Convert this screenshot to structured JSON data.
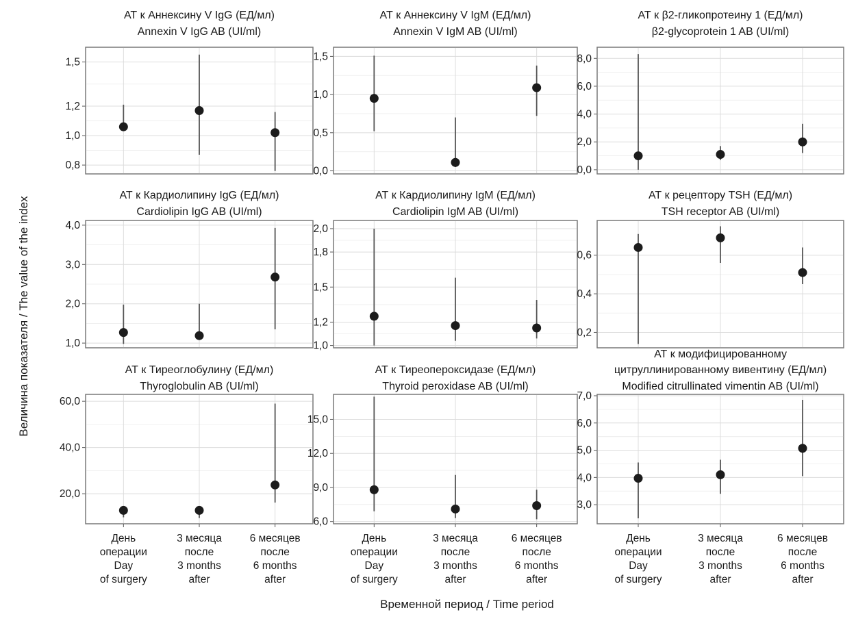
{
  "figure": {
    "y_axis_title": "Величина показателя / The value of the index",
    "x_axis_title": "Временной период / Time period",
    "categories": [
      [
        "День",
        "операции",
        "Day",
        "of surgery"
      ],
      [
        "3 месяца",
        "после",
        "3 months",
        "after"
      ],
      [
        "6 месяцев",
        "после",
        "6 months",
        "after"
      ]
    ]
  },
  "chart_data": [
    {
      "type": "scatter",
      "title": [
        "АТ к Аннексину V IgG (ЕД/мл)",
        "Annexin V IgG AB (UI/ml)"
      ],
      "categories": [
        "День операции / Day of surgery",
        "3 месяца после / 3 months after",
        "6 месяцев после / 6 months after"
      ],
      "values": [
        1.06,
        1.17,
        1.02
      ],
      "error_low": [
        null,
        0.87,
        0.76
      ],
      "error_high": [
        1.21,
        1.55,
        1.16
      ],
      "ylim": [
        0.74,
        1.6
      ],
      "yticks": [
        0.8,
        1.0,
        1.2,
        1.5
      ],
      "ytick_labels": [
        "0,8",
        "1,0",
        "1,2",
        "1,5"
      ],
      "grid": true
    },
    {
      "type": "scatter",
      "title": [
        "АТ к Аннексину V IgM (ЕД/мл)",
        "Annexin V IgM AB (UI/ml)"
      ],
      "categories": [
        "День операции / Day of surgery",
        "3 месяца после / 3 months after",
        "6 месяцев после / 6 months after"
      ],
      "values": [
        0.95,
        0.11,
        1.09
      ],
      "error_low": [
        0.52,
        0.05,
        0.72
      ],
      "error_high": [
        1.51,
        0.7,
        1.38
      ],
      "ylim": [
        -0.04,
        1.62
      ],
      "yticks": [
        0.0,
        0.5,
        1.0,
        1.5
      ],
      "ytick_labels": [
        "0,0",
        "0,5",
        "1,0",
        "1,5"
      ],
      "grid": true
    },
    {
      "type": "scatter",
      "title": [
        "АТ к β2-гликопротеину 1 (ЕД/мл)",
        "β2-glycoprotein 1 AB (UI/ml)"
      ],
      "categories": [
        "День операции / Day of surgery",
        "3 месяца после / 3 months after",
        "6 месяцев после / 6 months after"
      ],
      "values": [
        1.0,
        1.1,
        2.0
      ],
      "error_low": [
        0.0,
        0.7,
        1.2
      ],
      "error_high": [
        8.3,
        1.7,
        3.3
      ],
      "ylim": [
        -0.3,
        8.8
      ],
      "yticks": [
        0.0,
        2.0,
        4.0,
        6.0,
        8.0
      ],
      "ytick_labels": [
        "0,0",
        "2,0",
        "4,0",
        "6,0",
        "8,0"
      ],
      "grid": true
    },
    {
      "type": "scatter",
      "title": [
        "АТ к Кардиолипину IgG (ЕД/мл)",
        "Cardiolipin IgG AB (UI/ml)"
      ],
      "categories": [
        "День операции / Day of surgery",
        "3 месяца после / 3 months after",
        "6 месяцев после / 6 months after"
      ],
      "values": [
        1.27,
        1.19,
        2.68
      ],
      "error_low": [
        0.98,
        null,
        1.35
      ],
      "error_high": [
        1.98,
        2.0,
        3.93
      ],
      "ylim": [
        0.88,
        4.12
      ],
      "yticks": [
        1.0,
        2.0,
        3.0,
        4.0
      ],
      "ytick_labels": [
        "1,0",
        "2,0",
        "3,0",
        "4,0"
      ],
      "grid": true
    },
    {
      "type": "scatter",
      "title": [
        "АТ к Кардиолипину IgM (ЕД/мл)",
        "Cardiolipin IgM AB (UI/ml)"
      ],
      "categories": [
        "День операции / Day of surgery",
        "3 месяца после / 3 months after",
        "6 месяцев после / 6 months after"
      ],
      "values": [
        1.25,
        1.17,
        1.15
      ],
      "error_low": [
        1.0,
        1.04,
        1.06
      ],
      "error_high": [
        2.0,
        1.58,
        1.39
      ],
      "ylim": [
        0.98,
        2.07
      ],
      "yticks": [
        1.0,
        1.2,
        1.5,
        1.8,
        2.0
      ],
      "ytick_labels": [
        "1,0",
        "1,2",
        "1,5",
        "1,8",
        "2,0"
      ],
      "grid": true
    },
    {
      "type": "scatter",
      "title": [
        "АТ к рецептору TSH (ЕД/мл)",
        "TSH receptor AB (UI/ml)"
      ],
      "categories": [
        "День операции / Day of surgery",
        "3 месяца после / 3 months after",
        "6 месяцев после / 6 months after"
      ],
      "values": [
        0.64,
        0.69,
        0.51
      ],
      "error_low": [
        0.14,
        0.56,
        0.45
      ],
      "error_high": [
        0.71,
        0.75,
        0.64
      ],
      "ylim": [
        0.12,
        0.78
      ],
      "yticks": [
        0.2,
        0.4,
        0.6
      ],
      "ytick_labels": [
        "0,2",
        "0,4",
        "0,6"
      ],
      "grid": true
    },
    {
      "type": "scatter",
      "title": [
        "АТ к Тиреоглобулину (ЕД/мл)",
        "Thyroglobulin AB (UI/ml)"
      ],
      "categories": [
        "День операции / Day of surgery",
        "3 месяца после / 3 months after",
        "6 месяцев после / 6 months after"
      ],
      "values": [
        12.8,
        12.8,
        23.8
      ],
      "error_low": [
        9.8,
        9.5,
        16.2
      ],
      "error_high": [
        14.5,
        14.0,
        59.0
      ],
      "ylim": [
        7.0,
        63.0
      ],
      "yticks": [
        20.0,
        40.0,
        60.0
      ],
      "ytick_labels": [
        "20,0",
        "40,0",
        "60,0"
      ],
      "grid": true
    },
    {
      "type": "scatter",
      "title": [
        "АТ к Тиреопероксидазе (ЕД/мл)",
        "Thyroid peroxidase AB (UI/ml)"
      ],
      "categories": [
        "День операции / Day of surgery",
        "3 месяца после / 3 months after",
        "6 месяцев после / 6 months after"
      ],
      "values": [
        8.8,
        7.1,
        7.4
      ],
      "error_low": [
        6.9,
        6.3,
        6.2
      ],
      "error_high": [
        17.0,
        10.1,
        8.8
      ],
      "ylim": [
        5.8,
        17.2
      ],
      "yticks": [
        6.0,
        9.0,
        12.0,
        15.0
      ],
      "ytick_labels": [
        "6,0",
        "9,0",
        "12,0",
        "15,0"
      ],
      "grid": true
    },
    {
      "type": "scatter",
      "title": [
        "АТ к модифицированному",
        "цитруллинированному вивентину (ЕД/мл)",
        "Modified citrullinated vimentin AB (UI/ml)"
      ],
      "categories": [
        "День операции / Day of surgery",
        "3 месяца после / 3 months after",
        "6 месяцев после / 6 months after"
      ],
      "values": [
        3.97,
        4.1,
        5.07
      ],
      "error_low": [
        2.5,
        3.4,
        4.05
      ],
      "error_high": [
        4.55,
        4.65,
        6.85
      ],
      "ylim": [
        2.3,
        7.05
      ],
      "yticks": [
        3.0,
        4.0,
        5.0,
        6.0,
        7.0
      ],
      "ytick_labels": [
        "3,0",
        "4,0",
        "5,0",
        "6,0",
        "7,0"
      ],
      "grid": true
    }
  ]
}
